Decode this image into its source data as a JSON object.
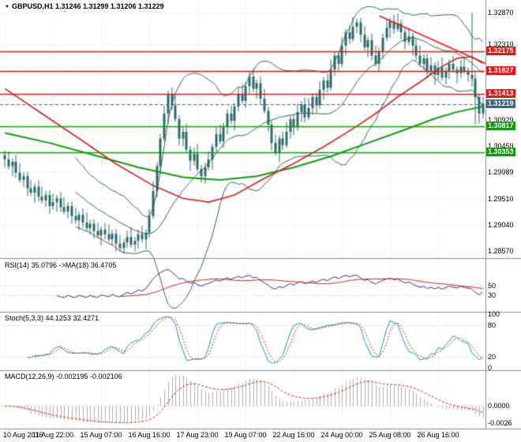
{
  "header": {
    "marker": "▼",
    "title": "GBPUSD,H1 1.31246 1.31299 1.31206 1.31229"
  },
  "panel_labels": {
    "rsi": "RSI(14) 35.0796  ->MA(18) 36.4705",
    "stoch": "Stoch(5,3,3) 44.1253 32.4271",
    "macd": "MACD(12,26,9) -0.002195 -0.002106"
  },
  "colors": {
    "background": "#ffffff",
    "grid": "#dadada",
    "separator": "#8a8a8a",
    "candle": "#2f6868",
    "bollinger": "#35605f",
    "ma_fast": "#d42020",
    "ma_slow": "#0f9a0f",
    "resistance": "#e81717",
    "support": "#0f9a0f",
    "current_tag": "#45627e",
    "trendline": "#e81717",
    "rsi_line": "#32327a",
    "rsi_ma": "#d42020",
    "stoch_k": "#149a9a",
    "stoch_d": "#d42020",
    "macd_hist": "#adadad",
    "macd_signal": "#d42020",
    "text": "#000000"
  },
  "chart_data": {
    "type": "candlestick",
    "symbol": "GBPUSD",
    "timeframe": "H1",
    "title": "GBPUSD,H1 1.31246 1.31299 1.31206 1.31229",
    "main": {
      "price_min": 1.2851,
      "price_max": 1.3299,
      "open_first": 1.303,
      "closes": [
        1.3022,
        1.301,
        1.3018,
        1.2998,
        1.2985,
        1.2992,
        1.297,
        1.2962,
        1.2973,
        1.2955,
        1.2948,
        1.2958,
        1.2938,
        1.2945,
        1.2952,
        1.2936,
        1.2928,
        1.2938,
        1.292,
        1.2912,
        1.2922,
        1.2908,
        1.2898,
        1.2906,
        1.2893,
        1.2885,
        1.2895,
        1.2887,
        1.2878,
        1.2888,
        1.287,
        1.2862,
        1.2872,
        1.2882,
        1.2868,
        1.2875,
        1.2887,
        1.2878,
        1.289,
        1.292,
        1.2965,
        1.301,
        1.306,
        1.3105,
        1.314,
        1.312,
        1.3095,
        1.306,
        1.3072,
        1.304,
        1.302,
        1.3032,
        1.3005,
        1.2992,
        1.3008,
        1.3022,
        1.3045,
        1.3068,
        1.3055,
        1.3082,
        1.3105,
        1.3092,
        1.3118,
        1.314,
        1.3128,
        1.3155,
        1.3172,
        1.315,
        1.316,
        1.3132,
        1.311,
        1.3085,
        1.3052,
        1.3035,
        1.306,
        1.3048,
        1.3072,
        1.3095,
        1.308,
        1.3108,
        1.3122,
        1.3098,
        1.3115,
        1.3135,
        1.312,
        1.3148,
        1.3165,
        1.3152,
        1.3185,
        1.321,
        1.3195,
        1.3228,
        1.3252,
        1.324,
        1.3262,
        1.327,
        1.3248,
        1.3225,
        1.3238,
        1.321,
        1.3195,
        1.3218,
        1.3242,
        1.326,
        1.3272,
        1.3258,
        1.3268,
        1.3252,
        1.3235,
        1.3245,
        1.3228,
        1.321,
        1.3195,
        1.3205,
        1.3182,
        1.3192,
        1.3175,
        1.3188,
        1.317,
        1.3182,
        1.3195,
        1.3185,
        1.3178,
        1.319,
        1.3182,
        1.3175,
        1.3168,
        1.3135,
        1.3105,
        1.3123
      ],
      "wick_cycle": [
        [
          8,
          14
        ],
        [
          15,
          6
        ],
        [
          6,
          18
        ],
        [
          12,
          9
        ],
        [
          18,
          5
        ],
        [
          7,
          12
        ]
      ],
      "spikes": {
        "126": {
          "high": 1.3287
        },
        "127": {
          "low": 1.3085
        }
      },
      "y_ticks": [
        {
          "v": 1.3287,
          "t": "1.32870"
        },
        {
          "v": 1.3231,
          "t": "1.32310"
        },
        {
          "v": 1.30929,
          "t": "1.30929"
        },
        {
          "v": 1.30459,
          "t": "1.30459"
        },
        {
          "v": 1.29989,
          "t": "1.29989"
        },
        {
          "v": 1.2951,
          "t": "1.29510"
        },
        {
          "v": 1.2904,
          "t": "1.29040"
        },
        {
          "v": 1.2857,
          "t": "1.28570"
        }
      ],
      "y_grid_extra": [
        1.3184,
        1.3137
      ],
      "price_tags": [
        {
          "v": 1.32175,
          "t": "1.32175",
          "kind": "resistance"
        },
        {
          "v": 1.31827,
          "t": "1.31827",
          "kind": "resistance"
        },
        {
          "v": 1.31413,
          "t": "1.31413",
          "kind": "resistance"
        },
        {
          "v": 1.31219,
          "t": "1.31219",
          "kind": "current"
        },
        {
          "v": 1.30817,
          "t": "1.30817",
          "kind": "support"
        },
        {
          "v": 1.30353,
          "t": "1.30353",
          "kind": "support"
        }
      ],
      "trendline": {
        "bar1": 101,
        "price1": 1.3282,
        "bar2": 131,
        "price2": 1.3192
      },
      "ma_fast_points": [
        [
          0,
          1.315
        ],
        [
          10,
          1.3105
        ],
        [
          20,
          1.306
        ],
        [
          30,
          1.3014
        ],
        [
          40,
          1.2975
        ],
        [
          48,
          1.2952
        ],
        [
          55,
          1.2945
        ],
        [
          62,
          1.2958
        ],
        [
          70,
          1.2988
        ],
        [
          78,
          1.3015
        ],
        [
          86,
          1.3045
        ],
        [
          94,
          1.3078
        ],
        [
          100,
          1.3105
        ],
        [
          106,
          1.3135
        ],
        [
          112,
          1.3162
        ],
        [
          118,
          1.319
        ],
        [
          122,
          1.3205
        ],
        [
          126,
          1.3208
        ],
        [
          129,
          1.3196
        ]
      ],
      "ma_slow_points": [
        [
          0,
          1.307
        ],
        [
          12,
          1.3052
        ],
        [
          24,
          1.303
        ],
        [
          36,
          1.3008
        ],
        [
          48,
          1.299
        ],
        [
          58,
          1.2985
        ],
        [
          68,
          1.2992
        ],
        [
          78,
          1.3008
        ],
        [
          88,
          1.3028
        ],
        [
          98,
          1.3052
        ],
        [
          108,
          1.3076
        ],
        [
          116,
          1.3096
        ],
        [
          122,
          1.3108
        ],
        [
          129,
          1.3118
        ]
      ],
      "bollinger": {
        "period": 20,
        "deviation": 2
      }
    },
    "rsi": {
      "period": 14,
      "ma_period": 18,
      "current": 35.0796,
      "current_ma": 36.4705,
      "range": [
        0,
        100
      ],
      "levels": [
        50,
        30
      ],
      "ticks": [
        {
          "v": 50,
          "t": "50"
        },
        {
          "v": 30,
          "t": "30"
        }
      ]
    },
    "stoch": {
      "k": 5,
      "d": 3,
      "slowing": 3,
      "current_k": 44.1253,
      "current_d": 32.4271,
      "range": [
        -2,
        102
      ],
      "levels": [
        80,
        20
      ],
      "ticks": [
        {
          "v": 100,
          "t": "100"
        },
        {
          "v": 80,
          "t": "80"
        },
        {
          "v": 20,
          "t": "20"
        },
        {
          "v": 0,
          "t": "0"
        }
      ]
    },
    "macd": {
      "fast": 12,
      "slow": 26,
      "signal": 9,
      "current": -0.002195,
      "current_signal": -0.002106,
      "levels": [
        0
      ],
      "ticks": [
        {
          "v": 0,
          "t": "0.0000"
        },
        {
          "v": -0.0026,
          "t": "-0.0026"
        }
      ]
    },
    "x_labels": [
      {
        "bar": 0,
        "t": "10 Aug 2016"
      },
      {
        "bar": 13,
        "t": "11 Aug 22:00"
      },
      {
        "bar": 26,
        "t": "15 Aug 07:00"
      },
      {
        "bar": 39,
        "t": "16 Aug 16:00"
      },
      {
        "bar": 52,
        "t": "17 Aug 23:00"
      },
      {
        "bar": 65,
        "t": "19 Aug 07:00"
      },
      {
        "bar": 78,
        "t": "22 Aug 16:00"
      },
      {
        "bar": 91,
        "t": "24 Aug 00:00"
      },
      {
        "bar": 104,
        "t": "25 Aug 08:00"
      },
      {
        "bar": 117,
        "t": "26 Aug 16:00"
      }
    ]
  }
}
